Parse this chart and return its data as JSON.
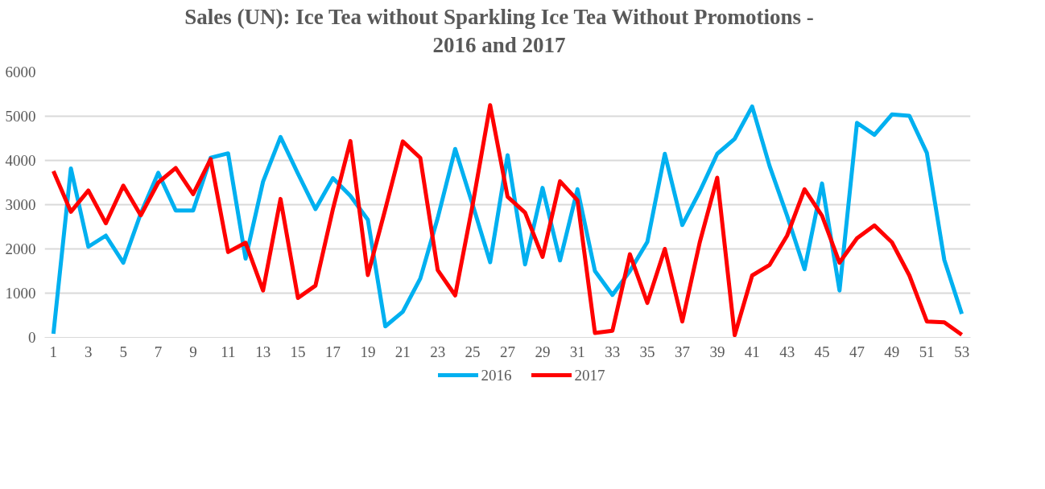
{
  "chart_data": {
    "type": "line",
    "title": "Sales (UN): Ice Tea without Sparkling Ice Tea Without Promotions - 2016 and 2017",
    "x": [
      1,
      2,
      3,
      4,
      5,
      6,
      7,
      8,
      9,
      10,
      11,
      12,
      13,
      14,
      15,
      16,
      17,
      18,
      19,
      20,
      21,
      22,
      23,
      24,
      25,
      26,
      27,
      28,
      29,
      30,
      31,
      32,
      33,
      34,
      35,
      36,
      37,
      38,
      39,
      40,
      41,
      42,
      43,
      44,
      45,
      46,
      47,
      48,
      49,
      50,
      51,
      52,
      53
    ],
    "series": [
      {
        "name": "2016",
        "color": "#00b0f0",
        "values": [
          80,
          3820,
          2050,
          2300,
          1690,
          2800,
          3720,
          2870,
          2870,
          4060,
          4160,
          1780,
          3520,
          4530,
          3700,
          2900,
          3600,
          3200,
          2660,
          250,
          580,
          1330,
          2700,
          4260,
          3000,
          1700,
          4120,
          1650,
          3380,
          1740,
          3350,
          1500,
          960,
          1500,
          2160,
          4150,
          2540,
          3300,
          4150,
          4490,
          5220,
          3870,
          2750,
          1540,
          3480,
          1060,
          4850,
          4580,
          5040,
          5010,
          4170,
          1750,
          530
        ]
      },
      {
        "name": "2017",
        "color": "#ff0000",
        "values": [
          3760,
          2840,
          3320,
          2580,
          3430,
          2760,
          3500,
          3830,
          3240,
          4030,
          1930,
          2140,
          1060,
          3130,
          890,
          1170,
          2900,
          4440,
          1410,
          2900,
          4430,
          4060,
          1520,
          950,
          3000,
          5250,
          3180,
          2820,
          1820,
          3530,
          3100,
          100,
          150,
          1880,
          780,
          2000,
          360,
          2150,
          3610,
          50,
          1400,
          1640,
          2300,
          3350,
          2750,
          1690,
          2240,
          2530,
          2150,
          1400,
          360,
          340,
          60
        ]
      }
    ],
    "xlim": [
      0.5,
      53.5
    ],
    "xticks": [
      1,
      3,
      5,
      7,
      9,
      11,
      13,
      15,
      17,
      19,
      21,
      23,
      25,
      27,
      29,
      31,
      33,
      35,
      37,
      39,
      41,
      43,
      45,
      47,
      49,
      51,
      53
    ],
    "ylim": [
      0,
      6000
    ],
    "yticks": [
      0,
      1000,
      2000,
      3000,
      4000,
      5000,
      6000
    ],
    "grid": "y",
    "legend": "bottom",
    "marker": "none",
    "line_style": "solid"
  }
}
